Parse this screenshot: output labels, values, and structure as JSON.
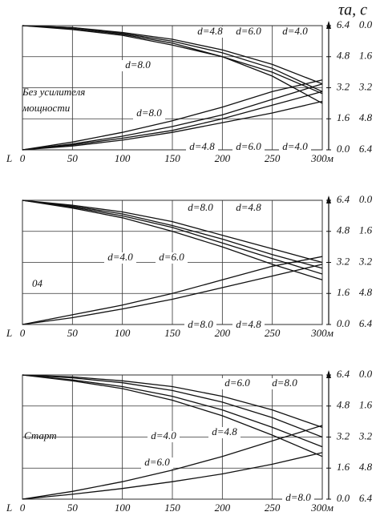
{
  "chart_data": [
    {
      "type": "line",
      "ylabel": "τa, c",
      "xlabel": "L",
      "annotations": [
        "Без усилителя",
        "мощности"
      ],
      "x": [
        0,
        50,
        100,
        150,
        200,
        250,
        300
      ],
      "xlim": [
        0,
        300
      ],
      "xticks": [
        0,
        50,
        100,
        150,
        200,
        250,
        {
          "value": 300,
          "label": "300м"
        }
      ],
      "ylim": [
        0,
        6.4
      ],
      "yticks": [
        {
          "value": 0,
          "label": "0.0"
        },
        1.6,
        3.2,
        4.8,
        6.4
      ],
      "y2lim": [
        6.4,
        0
      ],
      "y2ticks": [
        {
          "value": 0,
          "label": "0.0"
        },
        1.6,
        3.2,
        4.8,
        6.4
      ],
      "grid": true,
      "series": [
        {
          "name": "d=4.8",
          "color": "#111111",
          "values": [
            6.4,
            6.3,
            6.0,
            5.6,
            5.0,
            4.2,
            3.0
          ]
        },
        {
          "name": "d=6.0",
          "color": "#111111",
          "values": [
            6.4,
            6.3,
            6.05,
            5.7,
            5.15,
            4.4,
            3.4
          ]
        },
        {
          "name": "d=4.0",
          "color": "#111111",
          "values": [
            6.4,
            6.25,
            5.95,
            5.5,
            4.8,
            3.8,
            2.4
          ]
        },
        {
          "name": "d=8.0",
          "color": "#111111",
          "values": [
            6.4,
            6.2,
            5.9,
            5.4,
            4.8,
            4.0,
            2.9
          ]
        },
        {
          "name": "d=8.0",
          "color": "#111111",
          "values": [
            0,
            0.4,
            0.9,
            1.5,
            2.2,
            3.0,
            3.6
          ]
        },
        {
          "name": "d=4.8",
          "color": "#111111",
          "values": [
            0,
            0.3,
            0.7,
            1.2,
            1.8,
            2.6,
            3.4
          ]
        },
        {
          "name": "d=6.0",
          "color": "#111111",
          "values": [
            0,
            0.25,
            0.6,
            1.0,
            1.6,
            2.3,
            3.0
          ]
        },
        {
          "name": "d=4.0",
          "color": "#111111",
          "values": [
            0,
            0.2,
            0.5,
            0.9,
            1.4,
            1.9,
            2.5
          ]
        }
      ]
    },
    {
      "type": "line",
      "xlabel": "L",
      "annotations": [
        "04"
      ],
      "x": [
        0,
        50,
        100,
        150,
        200,
        250,
        300
      ],
      "xlim": [
        0,
        300
      ],
      "xticks": [
        0,
        50,
        100,
        150,
        200,
        250,
        {
          "value": 300,
          "label": "300м"
        }
      ],
      "ylim": [
        0,
        6.4
      ],
      "yticks": [
        {
          "value": 0,
          "label": "0.0"
        },
        1.6,
        3.2,
        4.8,
        6.4
      ],
      "y2lim": [
        6.4,
        0
      ],
      "y2ticks": [
        {
          "value": 0,
          "label": "0.0"
        },
        1.6,
        3.2,
        4.8,
        6.4
      ],
      "grid": true,
      "series": [
        {
          "name": "d=8.0",
          "color": "#111111",
          "values": [
            6.4,
            6.1,
            5.7,
            5.1,
            4.4,
            3.6,
            2.9
          ]
        },
        {
          "name": "d=4.8",
          "color": "#111111",
          "values": [
            6.4,
            6.15,
            5.8,
            5.3,
            4.6,
            3.9,
            3.2
          ]
        },
        {
          "name": "d=4.0",
          "color": "#111111",
          "values": [
            6.4,
            6.0,
            5.5,
            4.8,
            4.0,
            3.1,
            2.3
          ]
        },
        {
          "name": "d=6.0",
          "color": "#111111",
          "values": [
            6.4,
            6.05,
            5.6,
            5.0,
            4.2,
            3.4,
            2.6
          ]
        },
        {
          "name": "d=8.0",
          "color": "#111111",
          "values": [
            0,
            0.5,
            1.0,
            1.6,
            2.3,
            3.0,
            3.5
          ]
        },
        {
          "name": "d=4.8",
          "color": "#111111",
          "values": [
            0,
            0.35,
            0.8,
            1.3,
            1.9,
            2.5,
            3.1
          ]
        }
      ]
    },
    {
      "type": "line",
      "xlabel": "L",
      "annotations": [
        "Старт"
      ],
      "x": [
        0,
        50,
        100,
        150,
        200,
        250,
        300
      ],
      "xlim": [
        0,
        300
      ],
      "xticks": [
        0,
        50,
        100,
        150,
        200,
        250,
        {
          "value": 300,
          "label": "300м"
        }
      ],
      "ylim": [
        0,
        6.4
      ],
      "yticks": [
        {
          "value": 0,
          "label": "0.0"
        },
        1.6,
        3.2,
        4.8,
        6.4
      ],
      "y2lim": [
        6.4,
        0
      ],
      "y2ticks": [
        {
          "value": 0,
          "label": "0.0"
        },
        1.6,
        3.2,
        4.8,
        6.4
      ],
      "grid": true,
      "series": [
        {
          "name": "d=6.0",
          "color": "#111111",
          "values": [
            6.4,
            6.25,
            6.0,
            5.6,
            5.0,
            4.2,
            3.2
          ]
        },
        {
          "name": "d=8.0",
          "color": "#111111",
          "values": [
            6.4,
            6.3,
            6.1,
            5.8,
            5.3,
            4.6,
            3.7
          ]
        },
        {
          "name": "d=4.0",
          "color": "#111111",
          "values": [
            6.4,
            6.1,
            5.7,
            5.1,
            4.3,
            3.3,
            2.2
          ]
        },
        {
          "name": "d=4.8",
          "color": "#111111",
          "values": [
            6.4,
            6.15,
            5.8,
            5.3,
            4.6,
            3.7,
            2.7
          ]
        },
        {
          "name": "d=6.0",
          "color": "#111111",
          "values": [
            0,
            0.4,
            0.9,
            1.5,
            2.2,
            3.0,
            3.8
          ]
        },
        {
          "name": "d=8.0",
          "color": "#111111",
          "values": [
            0,
            0.25,
            0.55,
            0.9,
            1.3,
            1.8,
            2.4
          ]
        }
      ]
    }
  ]
}
